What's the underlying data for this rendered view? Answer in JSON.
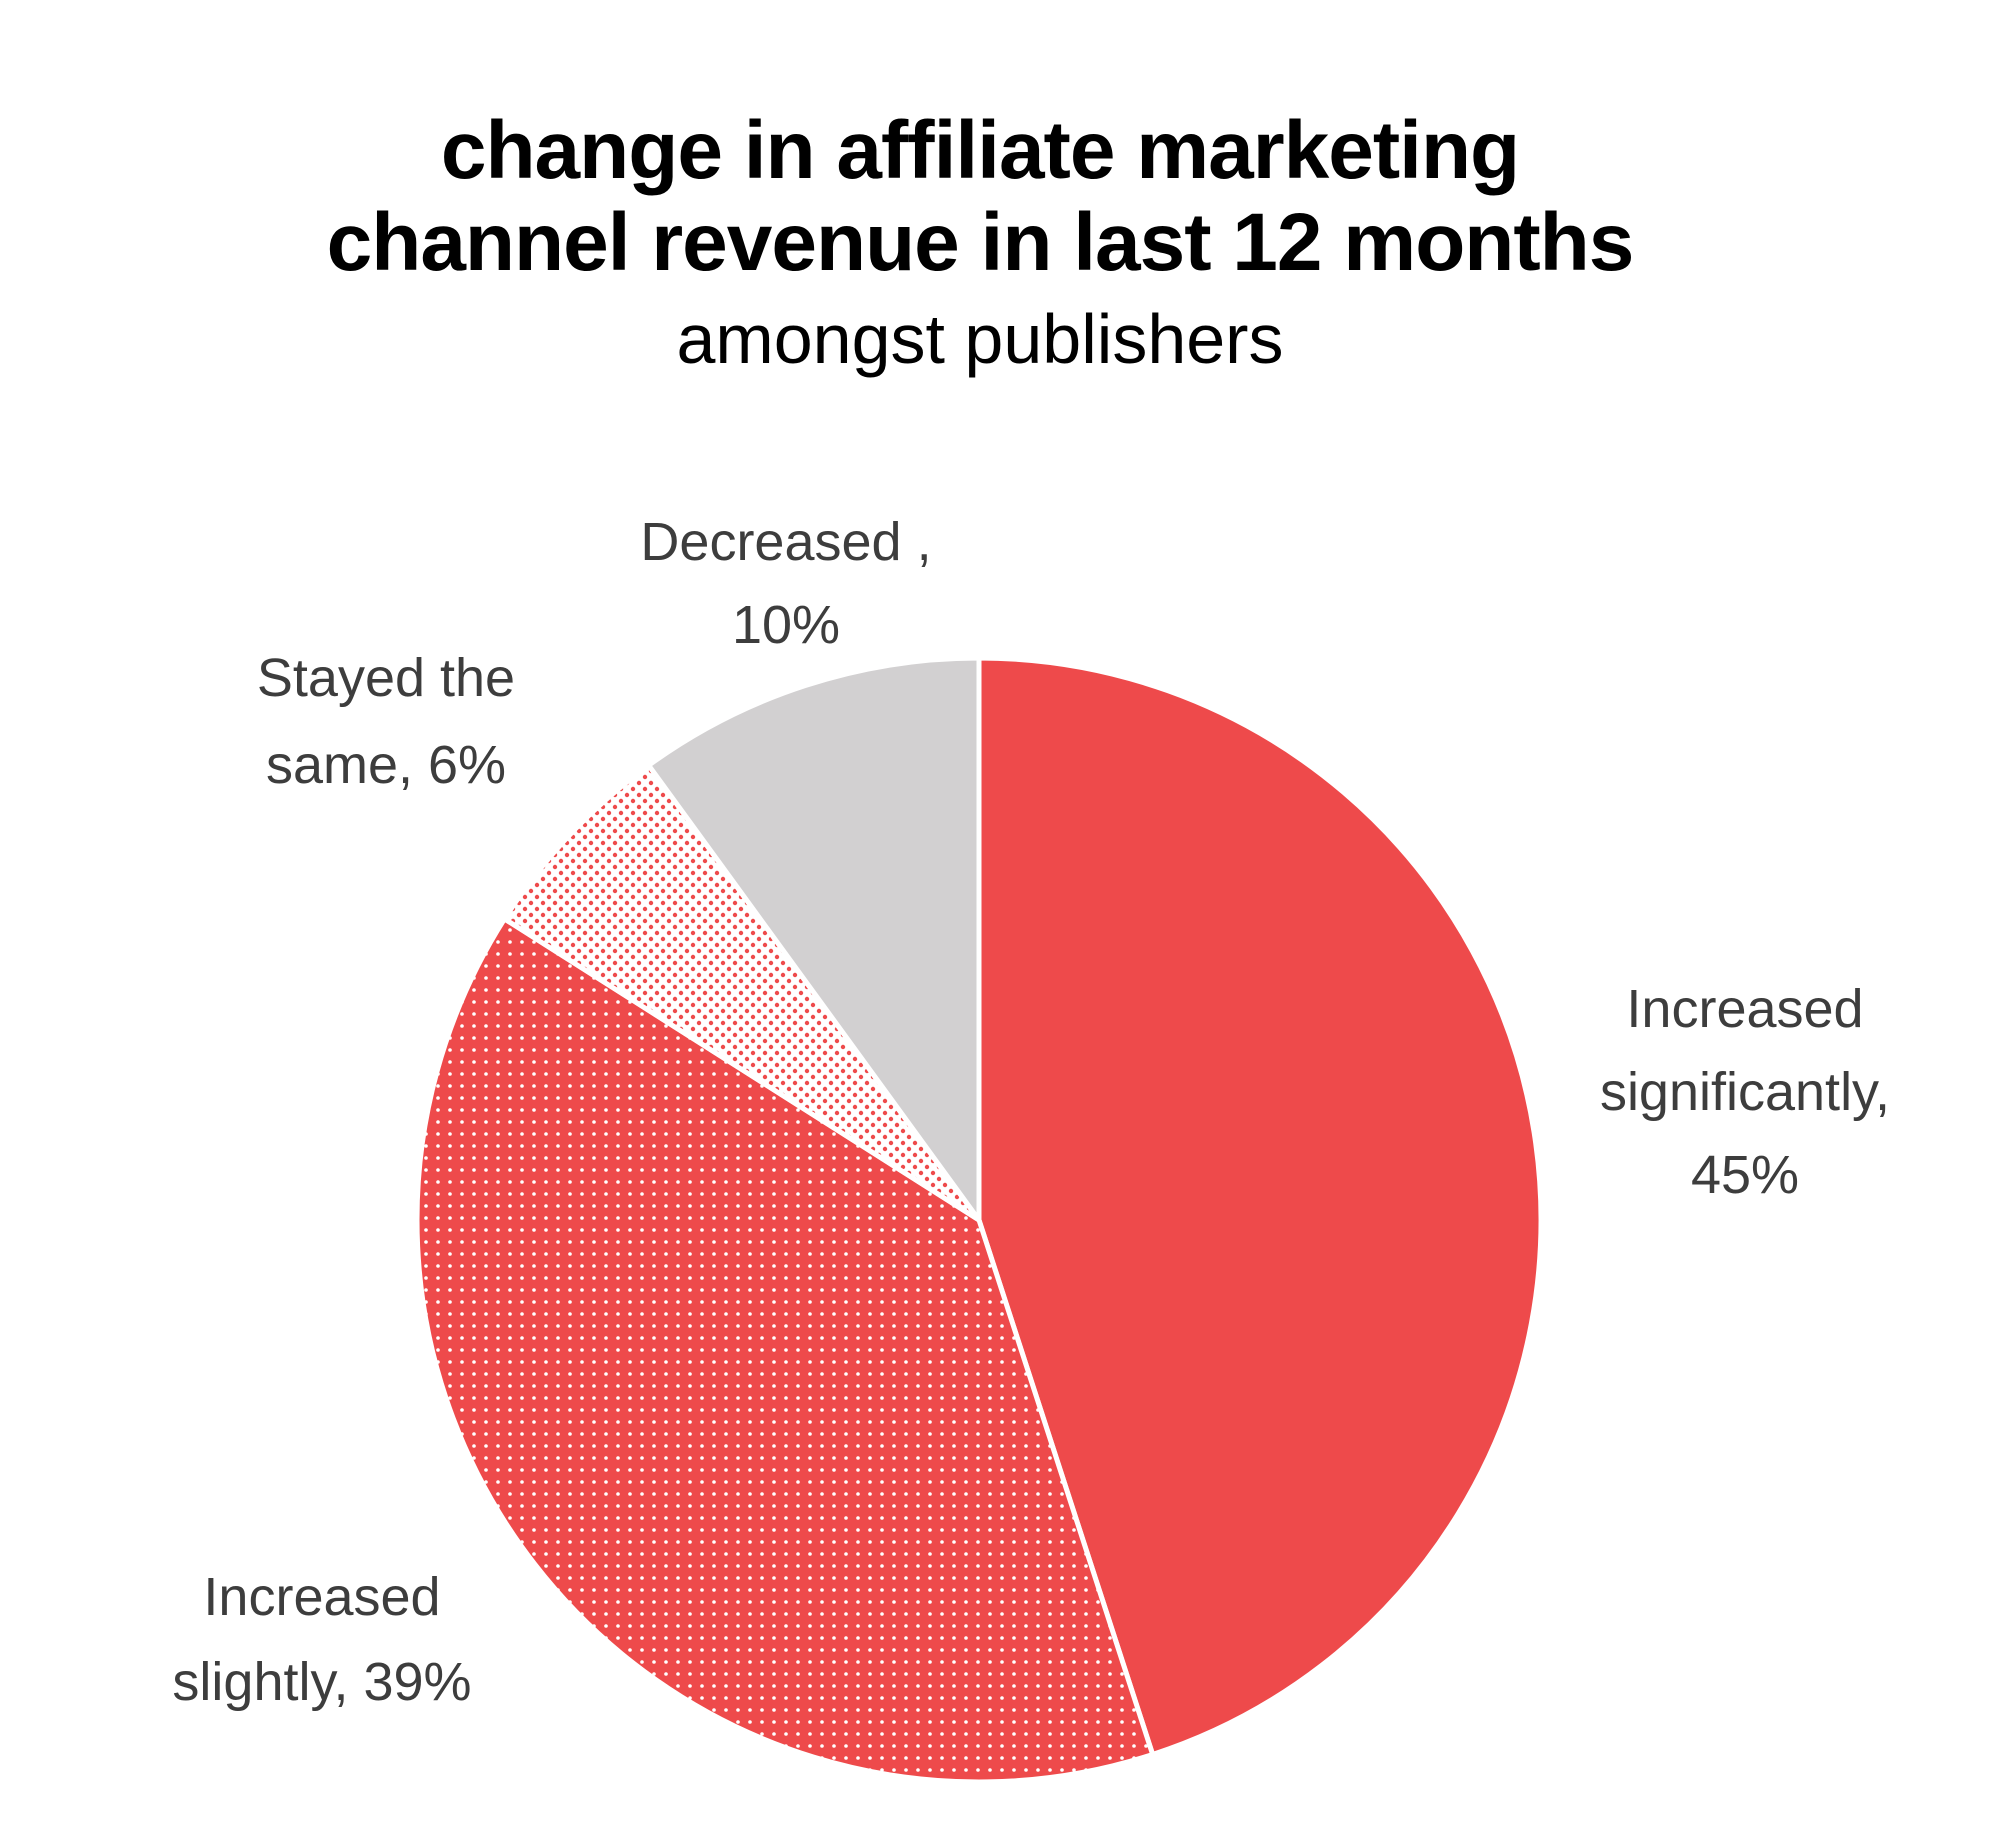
{
  "colors": {
    "primary_red": "#ee4a4b",
    "grey": "#d2d0d1",
    "dot_white": "#ffffff",
    "label_text": "#3d3d3d",
    "title_text": "#000000",
    "background": "#ffffff"
  },
  "chart_data": {
    "type": "pie",
    "title": "change in affiliate marketing channel revenue in last 12 months",
    "title_lines": [
      "change in affiliate marketing",
      "channel revenue in last 12 months"
    ],
    "subtitle": "amongst publishers",
    "start_angle_deg": 0,
    "direction": "clockwise",
    "slices": [
      {
        "key": "increased_significantly",
        "name": "Increased significantly",
        "value": 45,
        "label_lines": [
          "Increased",
          "significantly,",
          "45%"
        ],
        "fill": "solid-red"
      },
      {
        "key": "increased_slightly",
        "name": "Increased slightly",
        "value": 39,
        "label_lines": [
          "Increased",
          "slightly, 39%"
        ],
        "fill": "dense-dots-red"
      },
      {
        "key": "stayed_the_same",
        "name": "Stayed the same",
        "value": 6,
        "label_lines": [
          "Stayed the",
          "same, 6%"
        ],
        "fill": "sparse-dots-red"
      },
      {
        "key": "decreased",
        "name": "Decreased",
        "value": 10,
        "label_lines": [
          "Decreased ,",
          "10%"
        ],
        "fill": "solid-grey"
      }
    ]
  }
}
